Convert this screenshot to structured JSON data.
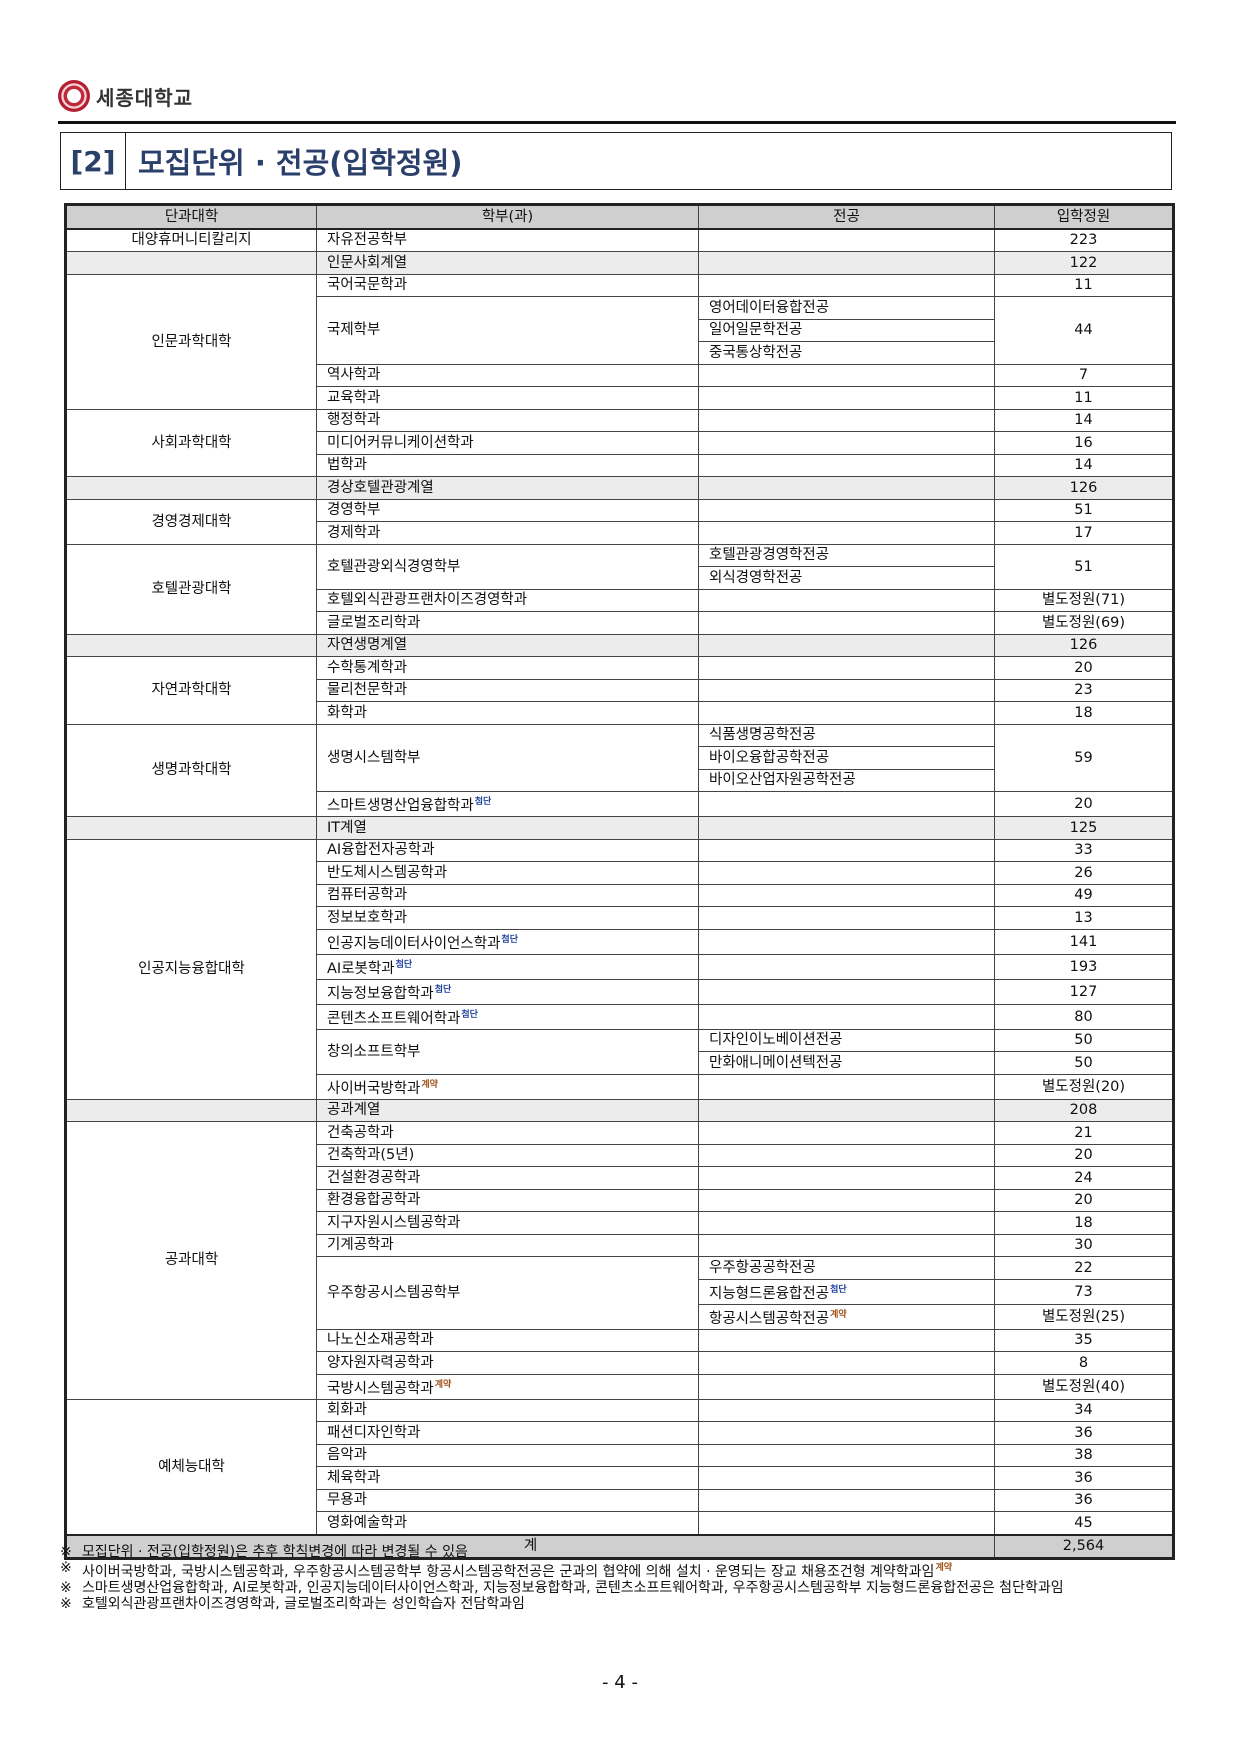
{
  "header": {
    "university": "세종대학교",
    "section_number": "[2]",
    "section_title": "모집단위 · 전공(입학정원)"
  },
  "colors": {
    "title": "#2b3f6b",
    "tag_advanced": "#1f3f9a",
    "tag_contract": "#a0521a"
  },
  "table": {
    "columns": [
      "단과대학",
      "학부(과)",
      "전공",
      "입학정원"
    ],
    "groups": [
      {
        "college": "대양휴머니티칼리지",
        "units": [
          {
            "name": "자유전공학부",
            "quota": "223"
          }
        ]
      },
      {
        "college": "",
        "shaded": true,
        "units": [
          {
            "name": "인문사회계열",
            "quota": "122"
          }
        ]
      },
      {
        "college": "인문과학대학",
        "units": [
          {
            "name": "국어국문학과",
            "quota": "11"
          },
          {
            "name": "국제학부",
            "quota": "44",
            "majors": [
              {
                "name": "영어데이터융합전공"
              },
              {
                "name": "일어일문학전공"
              },
              {
                "name": "중국통상학전공"
              }
            ]
          },
          {
            "name": "역사학과",
            "quota": "7"
          },
          {
            "name": "교육학과",
            "quota": "11"
          }
        ]
      },
      {
        "college": "사회과학대학",
        "units": [
          {
            "name": "행정학과",
            "quota": "14"
          },
          {
            "name": "미디어커뮤니케이션학과",
            "quota": "16"
          },
          {
            "name": "법학과",
            "quota": "14"
          }
        ]
      },
      {
        "college": "",
        "shaded": true,
        "units": [
          {
            "name": "경상호텔관광계열",
            "quota": "126"
          }
        ]
      },
      {
        "college": "경영경제대학",
        "units": [
          {
            "name": "경영학부",
            "quota": "51"
          },
          {
            "name": "경제학과",
            "quota": "17"
          }
        ]
      },
      {
        "college": "호텔관광대학",
        "units": [
          {
            "name": "호텔관광외식경영학부",
            "quota": "51",
            "majors": [
              {
                "name": "호텔관광경영학전공"
              },
              {
                "name": "외식경영학전공"
              }
            ]
          },
          {
            "name": "호텔외식관광프랜차이즈경영학과",
            "quota": "별도정원(71)"
          },
          {
            "name": "글로벌조리학과",
            "quota": "별도정원(69)"
          }
        ]
      },
      {
        "college": "",
        "shaded": true,
        "units": [
          {
            "name": "자연생명계열",
            "quota": "126"
          }
        ]
      },
      {
        "college": "자연과학대학",
        "units": [
          {
            "name": "수학통계학과",
            "quota": "20"
          },
          {
            "name": "물리천문학과",
            "quota": "23"
          },
          {
            "name": "화학과",
            "quota": "18"
          }
        ]
      },
      {
        "college": "생명과학대학",
        "units": [
          {
            "name": "생명시스템학부",
            "quota": "59",
            "majors": [
              {
                "name": "식품생명공학전공"
              },
              {
                "name": "바이오융합공학전공"
              },
              {
                "name": "바이오산업자원공학전공"
              }
            ]
          },
          {
            "name": "스마트생명산업융합학과",
            "tag": "첨단",
            "quota": "20"
          }
        ]
      },
      {
        "college": "",
        "shaded": true,
        "units": [
          {
            "name": "IT계열",
            "quota": "125"
          }
        ]
      },
      {
        "college": "인공지능융합대학",
        "units": [
          {
            "name": "AI융합전자공학과",
            "quota": "33"
          },
          {
            "name": "반도체시스템공학과",
            "quota": "26"
          },
          {
            "name": "컴퓨터공학과",
            "quota": "49"
          },
          {
            "name": "정보보호학과",
            "quota": "13"
          },
          {
            "name": "인공지능데이터사이언스학과",
            "tag": "첨단",
            "quota": "141"
          },
          {
            "name": "AI로봇학과",
            "tag": "첨단",
            "quota": "193"
          },
          {
            "name": "지능정보융합학과",
            "tag": "첨단",
            "quota": "127"
          },
          {
            "name": "콘텐츠소프트웨어학과",
            "tag": "첨단",
            "quota": "80"
          },
          {
            "name": "창의소프트학부",
            "majors": [
              {
                "name": "디자인이노베이션전공",
                "quota": "50"
              },
              {
                "name": "만화애니메이션텍전공",
                "quota": "50"
              }
            ]
          },
          {
            "name": "사이버국방학과",
            "tag": "계약",
            "quota": "별도정원(20)"
          }
        ]
      },
      {
        "college": "",
        "shaded": true,
        "units": [
          {
            "name": "공과계열",
            "quota": "208"
          }
        ]
      },
      {
        "college": "공과대학",
        "units": [
          {
            "name": "건축공학과",
            "quota": "21"
          },
          {
            "name": "건축학과(5년)",
            "quota": "20"
          },
          {
            "name": "건설환경공학과",
            "quota": "24"
          },
          {
            "name": "환경융합공학과",
            "quota": "20"
          },
          {
            "name": "지구자원시스템공학과",
            "quota": "18"
          },
          {
            "name": "기계공학과",
            "quota": "30"
          },
          {
            "name": "우주항공시스템공학부",
            "majors": [
              {
                "name": "우주항공공학전공",
                "quota": "22"
              },
              {
                "name": "지능형드론융합전공",
                "tag": "첨단",
                "quota": "73"
              },
              {
                "name": "항공시스템공학전공",
                "tag": "계약",
                "quota": "별도정원(25)"
              }
            ]
          },
          {
            "name": "나노신소재공학과",
            "quota": "35"
          },
          {
            "name": "양자원자력공학과",
            "quota": "8"
          },
          {
            "name": "국방시스템공학과",
            "tag": "계약",
            "quota": "별도정원(40)"
          }
        ]
      },
      {
        "college": "예체능대학",
        "units": [
          {
            "name": "회화과",
            "quota": "34"
          },
          {
            "name": "패션디자인학과",
            "quota": "36"
          },
          {
            "name": "음악과",
            "quota": "38"
          },
          {
            "name": "체육학과",
            "quota": "36"
          },
          {
            "name": "무용과",
            "quota": "36"
          },
          {
            "name": "영화예술학과",
            "quota": "45"
          }
        ]
      }
    ],
    "total": {
      "label": "계",
      "quota": "2,564"
    }
  },
  "notes": [
    {
      "mark": "※",
      "text": "모집단위 · 전공(입학정원)은 추후 학칙변경에 따라 변경될 수 있음"
    },
    {
      "mark": "※",
      "text": "사이버국방학과, 국방시스템공학과, 우주항공시스템공학부 항공시스템공학전공은 군과의 협약에 의해 설치 · 운영되는 장교 채용조건형 계약학과임",
      "tag": "계약"
    },
    {
      "mark": "※",
      "text": "스마트생명산업융합학과, AI로봇학과, 인공지능데이터사이언스학과, 지능정보융합학과, 콘텐츠소프트웨어학과, 우주항공시스템공학부 지능형드론융합전공은 첨단학과임"
    },
    {
      "mark": "※",
      "text": "호텔외식관광프랜차이즈경영학과, 글로벌조리학과는 성인학습자 전담학과임"
    }
  ],
  "page_number": "- 4 -"
}
